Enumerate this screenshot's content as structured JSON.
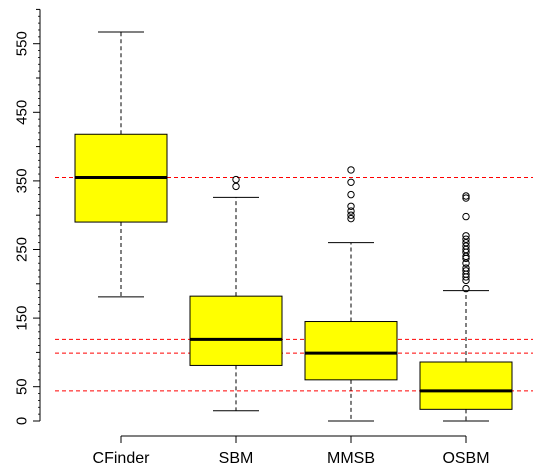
{
  "chart_data": {
    "type": "box",
    "title": "",
    "xlabel": "",
    "ylabel": "",
    "ylim": [
      -8,
      600
    ],
    "yticks": [
      0,
      50,
      150,
      250,
      350,
      450,
      550
    ],
    "ytick_labels": [
      "0",
      "50",
      "150",
      "250",
      "350",
      "450",
      "550"
    ],
    "yminor_ticks": [
      0,
      50,
      100,
      150,
      200,
      250,
      300,
      350,
      400,
      450,
      500,
      550,
      600
    ],
    "categories": [
      "CFinder",
      "SBM",
      "MMSB",
      "OSBM"
    ],
    "boxes": [
      {
        "category": "CFinder",
        "whisker_low": 181,
        "q1": 290,
        "median": 355,
        "q3": 418,
        "whisker_high": 567,
        "outliers": []
      },
      {
        "category": "SBM",
        "whisker_low": 15,
        "q1": 81,
        "median": 119,
        "q3": 182,
        "whisker_high": 326,
        "outliers": [
          342,
          352
        ]
      },
      {
        "category": "MMSB",
        "whisker_low": 0,
        "q1": 60,
        "median": 99,
        "q3": 145,
        "whisker_high": 260,
        "outliers": [
          295,
          300,
          306,
          313,
          330,
          348,
          366
        ]
      },
      {
        "category": "OSBM",
        "whisker_low": 0,
        "q1": 17,
        "median": 44,
        "q3": 86,
        "whisker_high": 190,
        "outliers": [
          193,
          205,
          210,
          214,
          219,
          223,
          230,
          237,
          240,
          246,
          250,
          255,
          260,
          265,
          270,
          298,
          325,
          328
        ]
      }
    ],
    "reference_lines": [
      355,
      119,
      99,
      44
    ],
    "box_fill": "#ffff00",
    "reference_line_color": "#ff0000",
    "median_color": "#000000"
  }
}
